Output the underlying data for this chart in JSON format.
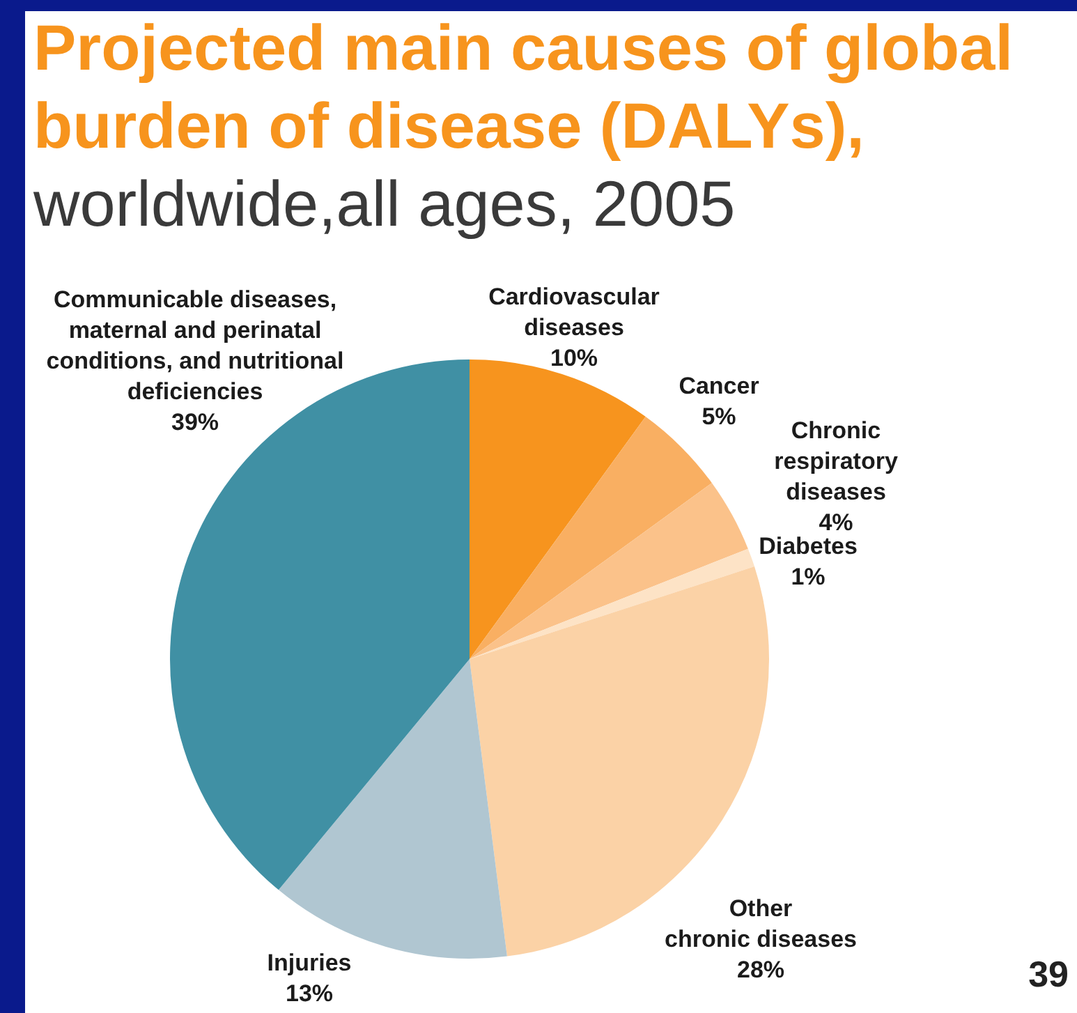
{
  "chart_data": {
    "type": "pie",
    "title": "Projected main causes of global burden of disease (DALYs),",
    "subtitle": "worldwide,all ages, 2005",
    "categories": [
      "Cardiovascular diseases",
      "Cancer",
      "Chronic respiratory diseases",
      "Diabetes",
      "Other chronic diseases",
      "Injuries",
      "Communicable diseases, maternal and perinatal conditions, and nutritional deficiencies"
    ],
    "values": [
      10,
      5,
      4,
      1,
      28,
      13,
      39
    ],
    "colors": [
      "#f7941e",
      "#f9af62",
      "#fbc28a",
      "#fde3c6",
      "#fbd2a6",
      "#b0c6d1",
      "#4090a4"
    ],
    "value_labels": [
      "10%",
      "5%",
      "4%",
      "1%",
      "28%",
      "13%",
      "39%"
    ],
    "annotations": [
      "39"
    ]
  }
}
